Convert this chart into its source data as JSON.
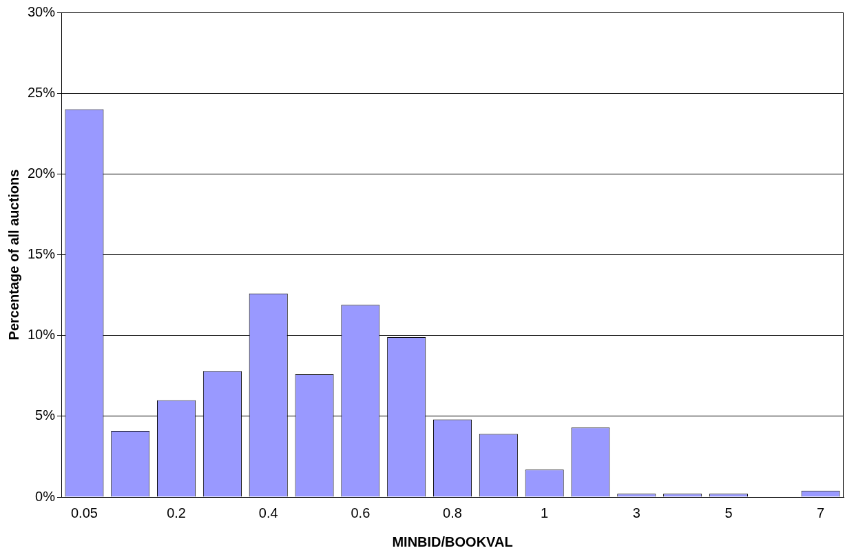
{
  "chart_data": {
    "type": "bar",
    "xlabel": "MINBID/BOOKVAL",
    "ylabel": "Percentage of all auctions",
    "categories": [
      "0.05",
      null,
      "0.2",
      null,
      "0.4",
      null,
      "0.6",
      null,
      "0.8",
      null,
      "1",
      null,
      "3",
      null,
      "5",
      null,
      "7"
    ],
    "values": [
      24,
      4.1,
      6.0,
      7.8,
      12.6,
      7.6,
      11.9,
      9.9,
      4.8,
      3.9,
      1.7,
      4.3,
      0.2,
      0.2,
      0.2,
      0,
      0.4
    ],
    "color": "#9999ff",
    "ylim": [
      0,
      30
    ],
    "yticks": [
      {
        "value": 0,
        "label": "0%"
      },
      {
        "value": 5,
        "label": "5%"
      },
      {
        "value": 10,
        "label": "10%"
      },
      {
        "value": 15,
        "label": "15%"
      },
      {
        "value": 20,
        "label": "20%"
      },
      {
        "value": 25,
        "label": "25%"
      },
      {
        "value": 30,
        "label": "30%"
      }
    ],
    "grid": "y",
    "legend": false
  }
}
